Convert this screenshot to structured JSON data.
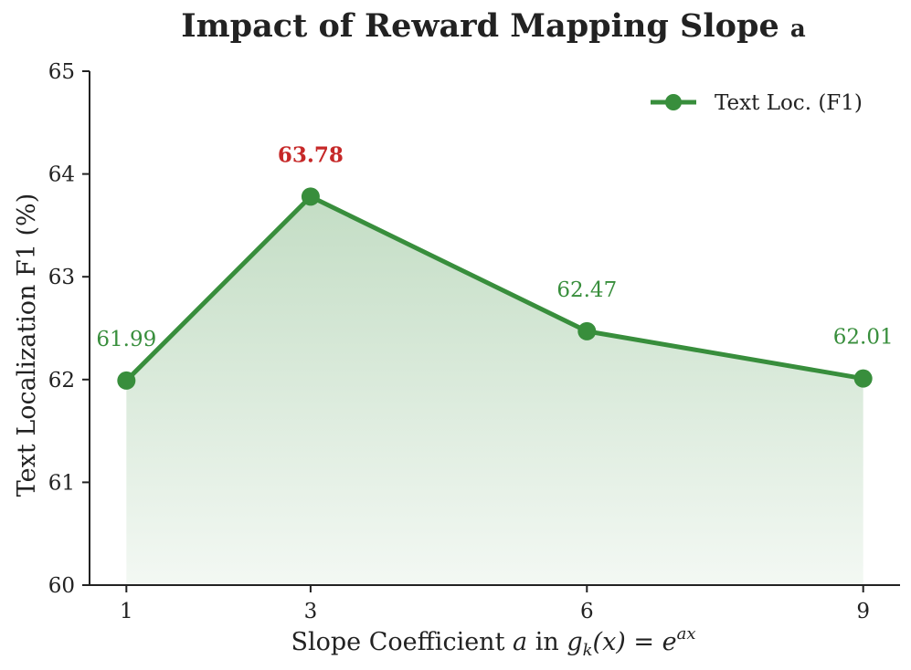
{
  "chart_data": {
    "type": "line",
    "title": "Impact of Reward Mapping Slope ",
    "title_symbol": "a",
    "xlabel_prefix": "Slope Coefficient ",
    "xlabel_var": "a",
    "xlabel_mid": " in ",
    "xlabel_g": "g",
    "xlabel_sub": "k",
    "xlabel_arg": "(x)",
    "xlabel_eq": " = ",
    "xlabel_e": "e",
    "xlabel_exp": "ax",
    "ylabel": "Text Localization F1 (%)",
    "x": [
      1,
      3,
      6,
      9
    ],
    "x_tick_labels": [
      "1",
      "3",
      "6",
      "9"
    ],
    "xlim": [
      0.6,
      9.4
    ],
    "ylim": [
      60,
      65
    ],
    "y_ticks": [
      60,
      61,
      62,
      63,
      64,
      65
    ],
    "series": [
      {
        "name": "Text Loc. (F1)",
        "values": [
          61.99,
          63.78,
          62.47,
          62.01
        ],
        "data_labels": [
          "61.99",
          "63.78",
          "62.47",
          "62.01"
        ],
        "highlight_index": 1
      }
    ],
    "line_color": "#388e3c",
    "highlight_color": "#c62828",
    "fill": "gradient-under-line",
    "legend_position": "top-right",
    "grid": false
  }
}
